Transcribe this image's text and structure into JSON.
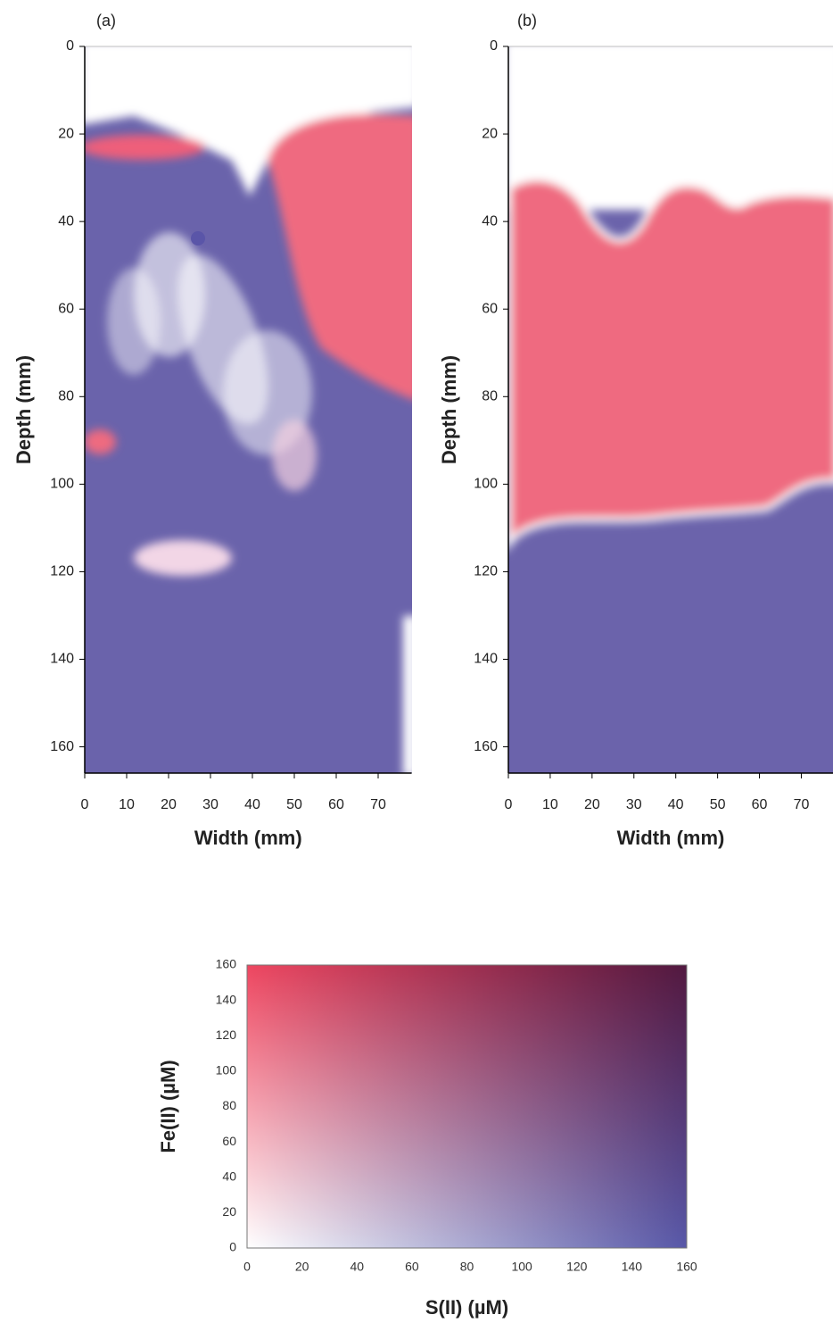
{
  "chart_data": [
    {
      "type": "heatmap",
      "label": "(a)",
      "xlabel": "Width (mm)",
      "ylabel": "Depth (mm)",
      "xlim": [
        0,
        78
      ],
      "xticks": [
        0,
        10,
        20,
        30,
        40,
        50,
        60,
        70
      ],
      "ylim": [
        166,
        0
      ],
      "yticks": [
        0,
        20,
        40,
        60,
        80,
        100,
        120,
        140,
        160
      ]
    },
    {
      "type": "heatmap",
      "label": "(b)",
      "xlabel": "Width (mm)",
      "ylabel": "Depth (mm)",
      "xlim": [
        0,
        78
      ],
      "xticks": [
        0,
        10,
        20,
        30,
        40,
        50,
        60,
        70
      ],
      "ylim": [
        166,
        0
      ],
      "yticks": [
        0,
        20,
        40,
        60,
        80,
        100,
        120,
        140,
        160
      ]
    },
    {
      "type": "color-key",
      "xlabel": "S(II) (µM)",
      "ylabel": "Fe(II) (µM)",
      "xlim": [
        0,
        160
      ],
      "xticks": [
        0,
        20,
        40,
        60,
        80,
        100,
        120,
        140,
        160
      ],
      "ylim": [
        0,
        160
      ],
      "yticks": [
        0,
        20,
        40,
        60,
        80,
        100,
        120,
        140,
        160
      ]
    }
  ]
}
